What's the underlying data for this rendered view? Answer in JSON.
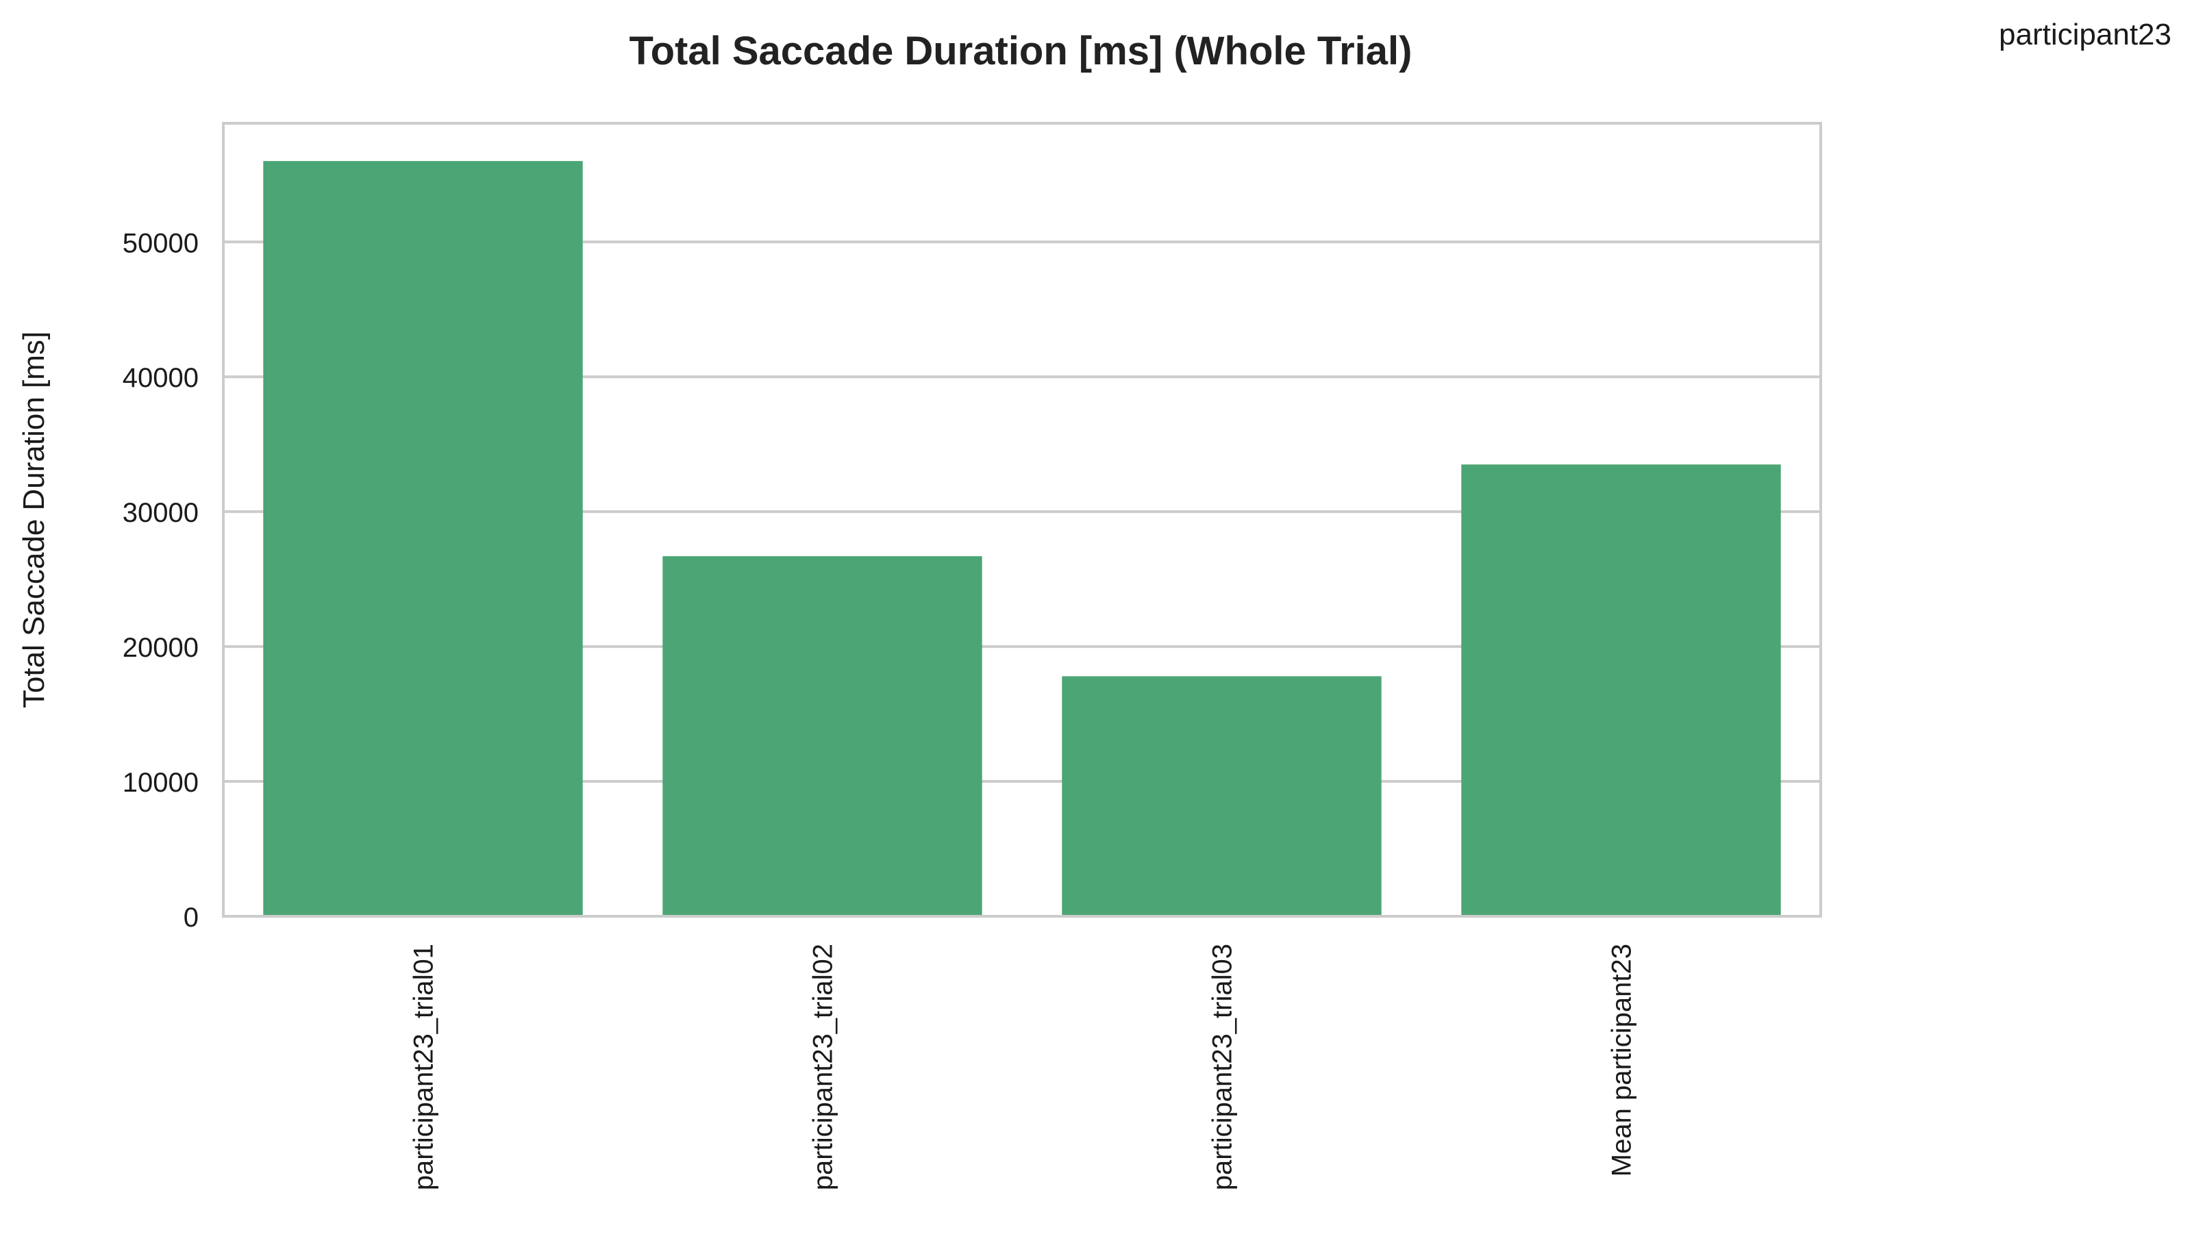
{
  "corner_label": "participant23",
  "chart_data": {
    "type": "bar",
    "title": "Total Saccade Duration [ms] (Whole Trial)",
    "xlabel": "",
    "ylabel": "Total Saccade Duration [ms]",
    "categories": [
      "participant23_trial01",
      "participant23_trial02",
      "participant23_trial03",
      "Mean participant23"
    ],
    "values": [
      56000,
      26700,
      17800,
      33500
    ],
    "ylim": [
      0,
      58800
    ],
    "yticks": [
      0,
      10000,
      20000,
      30000,
      40000,
      50000
    ],
    "ytick_labels": [
      "0",
      "10000",
      "20000",
      "30000",
      "40000",
      "50000"
    ],
    "bar_color": "#4ca574",
    "grid": true,
    "legend": "none"
  }
}
